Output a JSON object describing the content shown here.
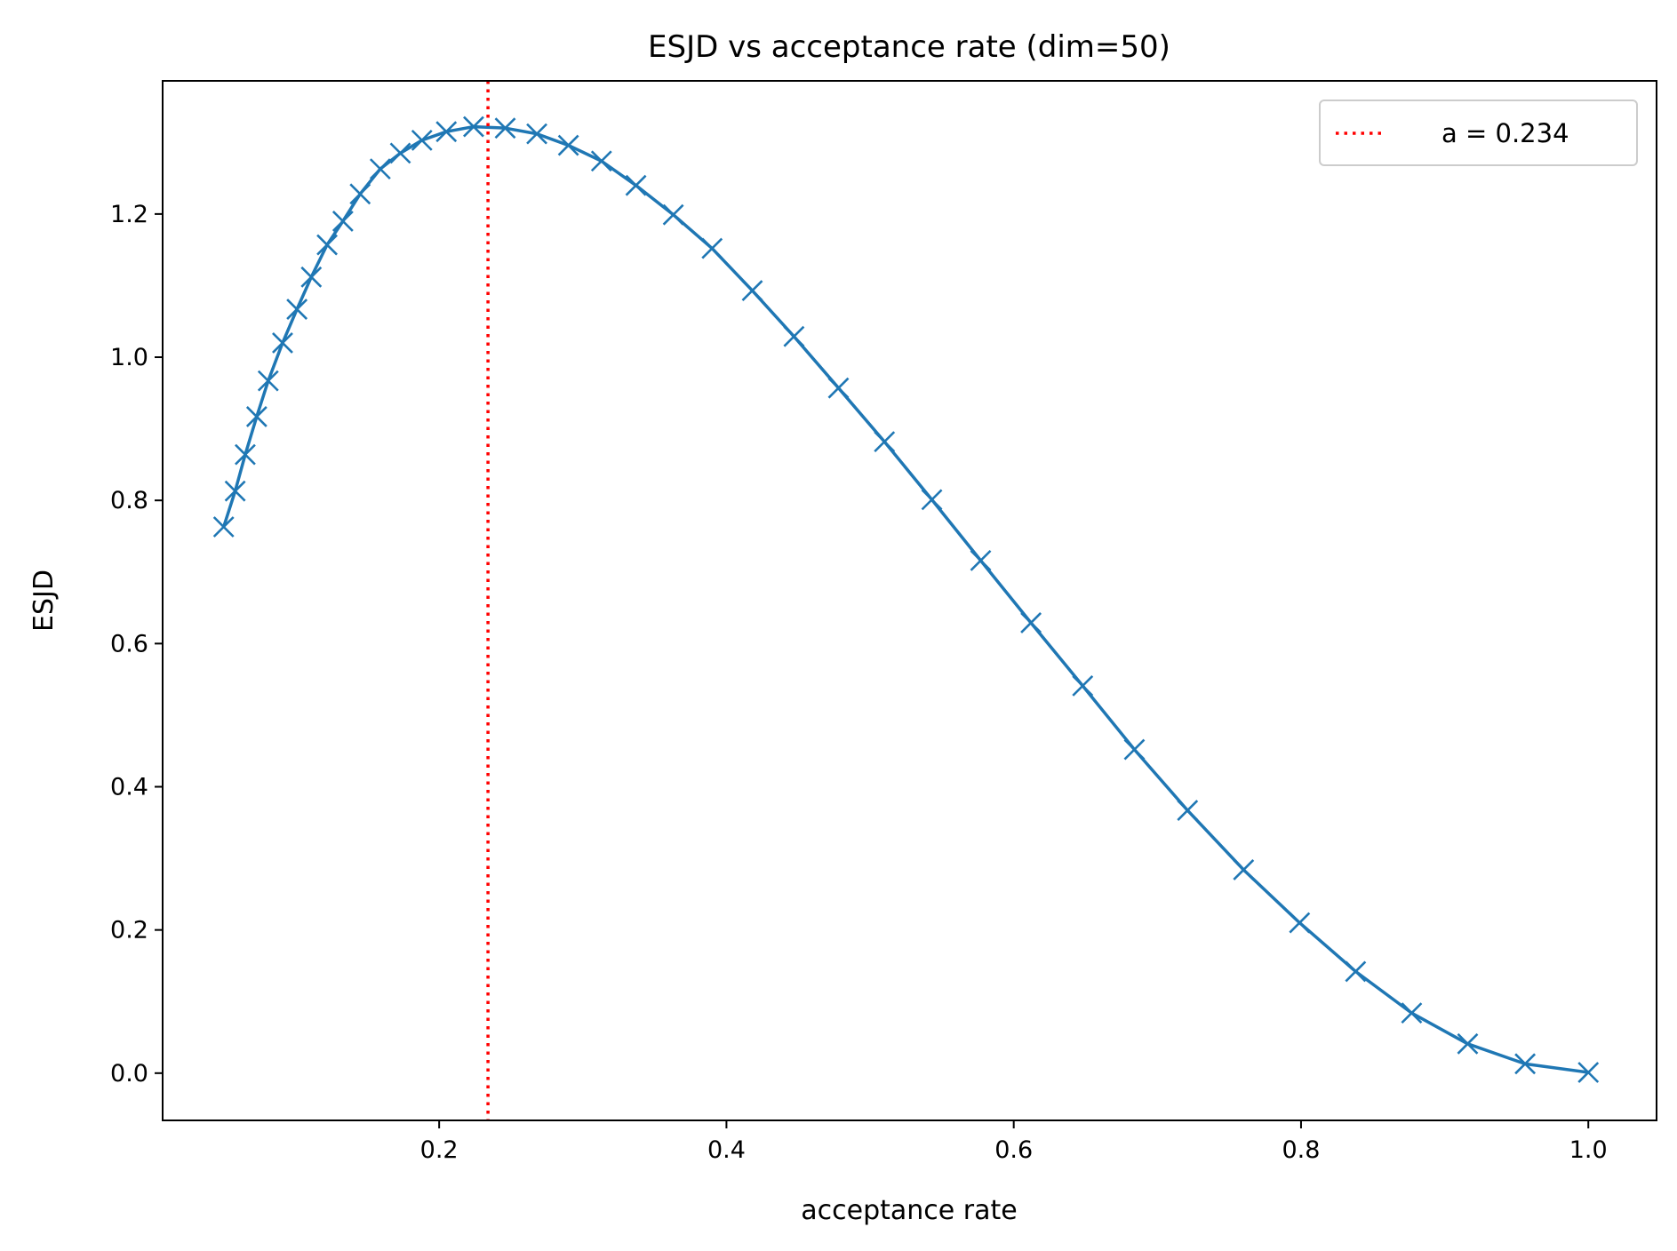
{
  "chart_data": {
    "type": "line",
    "title": "ESJD vs acceptance rate (dim=50)",
    "xlabel": "acceptance rate",
    "ylabel": "ESJD",
    "xlim": [
      0.0075,
      1.0475
    ],
    "ylim": [
      -0.066,
      1.386
    ],
    "xticks": [
      0.2,
      0.4,
      0.6,
      0.8,
      1.0
    ],
    "xtick_labels": [
      "0.2",
      "0.4",
      "0.6",
      "0.8",
      "1.0"
    ],
    "yticks": [
      0.0,
      0.2,
      0.4,
      0.6,
      0.8,
      1.0,
      1.2
    ],
    "ytick_labels": [
      "0.0",
      "0.2",
      "0.4",
      "0.6",
      "0.8",
      "1.0",
      "1.2"
    ],
    "grid": false,
    "legend": {
      "placement": "top-right"
    },
    "series": [
      {
        "color": "#1f77b4",
        "marker": "x",
        "x": [
          0.05,
          0.058,
          0.065,
          0.073,
          0.081,
          0.091,
          0.101,
          0.111,
          0.122,
          0.133,
          0.145,
          0.159,
          0.173,
          0.188,
          0.205,
          0.224,
          0.246,
          0.268,
          0.29,
          0.313,
          0.337,
          0.363,
          0.39,
          0.418,
          0.447,
          0.478,
          0.51,
          0.543,
          0.577,
          0.612,
          0.648,
          0.684,
          0.721,
          0.76,
          0.799,
          0.838,
          0.877,
          0.916,
          0.956,
          1.0
        ],
        "y": [
          0.763,
          0.813,
          0.864,
          0.917,
          0.967,
          1.02,
          1.067,
          1.112,
          1.157,
          1.19,
          1.228,
          1.263,
          1.285,
          1.303,
          1.315,
          1.322,
          1.32,
          1.312,
          1.296,
          1.274,
          1.24,
          1.199,
          1.152,
          1.093,
          1.029,
          0.957,
          0.882,
          0.801,
          0.716,
          0.629,
          0.541,
          0.452,
          0.367,
          0.284,
          0.21,
          0.142,
          0.084,
          0.041,
          0.013,
          0.001
        ]
      },
      {
        "name": "a = 0.234",
        "color": "#ff0000",
        "style": "dotted-vertical",
        "x_value": 0.234
      }
    ]
  }
}
